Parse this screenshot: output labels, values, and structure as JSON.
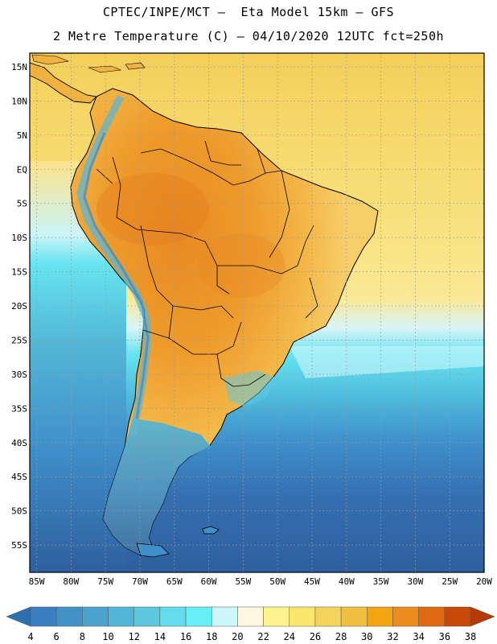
{
  "header": {
    "line1": "CPTEC/INPE/MCT –  Eta Model 15km – GFS",
    "line2": "2 Metre Temperature (C) – 04/10/2020 12UTC fct=250h"
  },
  "map": {
    "region": "South America",
    "lon_range": [
      -86,
      -20
    ],
    "lat_range": [
      -59,
      17
    ],
    "lat_labels": [
      "15N",
      "10N",
      "5N",
      "EQ",
      "5S",
      "10S",
      "15S",
      "20S",
      "25S",
      "30S",
      "35S",
      "40S",
      "45S",
      "50S",
      "55S"
    ],
    "lat_values": [
      15,
      10,
      5,
      0,
      -5,
      -10,
      -15,
      -20,
      -25,
      -30,
      -35,
      -40,
      -45,
      -50,
      -55
    ],
    "lon_labels": [
      "85W",
      "80W",
      "75W",
      "70W",
      "65W",
      "60W",
      "55W",
      "50W",
      "45W",
      "40W",
      "35W",
      "30W",
      "25W",
      "20W"
    ],
    "lon_values": [
      -85,
      -80,
      -75,
      -70,
      -65,
      -60,
      -55,
      -50,
      -45,
      -40,
      -35,
      -30,
      -25,
      -20
    ]
  },
  "colorbar": {
    "labels": [
      "4",
      "6",
      "8",
      "10",
      "12",
      "14",
      "16",
      "18",
      "20",
      "22",
      "24",
      "26",
      "28",
      "30",
      "32",
      "34",
      "36",
      "38"
    ],
    "colors": [
      "#3a7fbf",
      "#4391c7",
      "#49a3cc",
      "#52b6d6",
      "#5ec8df",
      "#63dceb",
      "#66f0f5",
      "#cdf6fb",
      "#fff6e0",
      "#fff48e",
      "#fbe66e",
      "#f5d45c",
      "#f0bf40",
      "#f3a512",
      "#ec8c1e",
      "#e06a14",
      "#c84a08"
    ],
    "low_color": "#2e6fb0",
    "high_color": "#b63a06"
  },
  "colors": {
    "ocean_cold": "#2e5f9e",
    "ocean_mid": "#3f8ec9",
    "ocean_cyan": "#5ecbe2",
    "ocean_warm": "#f6df7c",
    "land_hot": "#ec9a2c",
    "land_warm": "#f2b848",
    "andes": "#5fb6d3"
  }
}
